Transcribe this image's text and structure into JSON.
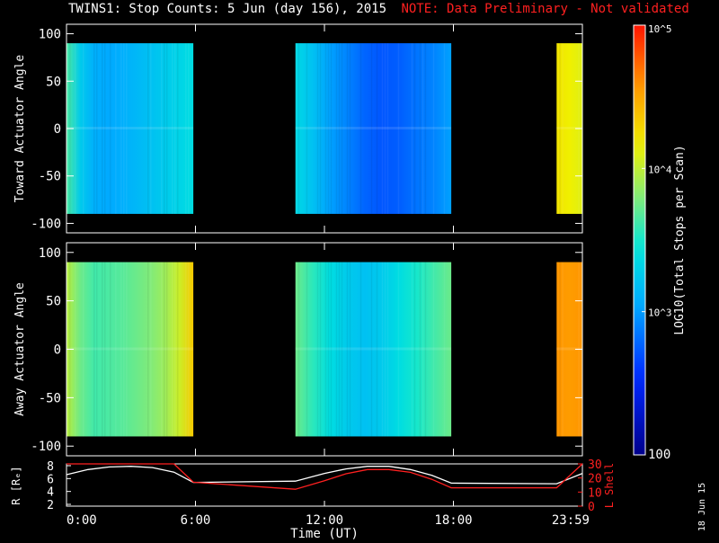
{
  "title": "TWINS1: Stop Counts:  5 Jun (day 156), 2015",
  "note": "NOTE: Data Preliminary - Not validated",
  "stamp": "18 Jun 15",
  "colors": {
    "note": "#ff2020",
    "lshell": "#ff2020",
    "radius": "#ffffff",
    "axis": "#ffffff",
    "background": "#000000"
  },
  "chart_data": [
    {
      "type": "heatmap",
      "panel": "top",
      "ylabel": "Toward Actuator Angle",
      "ylim": [
        -110,
        110
      ],
      "yticks": [
        "100",
        "50",
        "0",
        "-50",
        "-100"
      ],
      "x_range_hours": [
        0,
        24
      ],
      "data_blocks": [
        {
          "start_hour": 0.0,
          "end_hour": 5.9,
          "levels": [
            0.55,
            0.42,
            0.36,
            0.35,
            0.36,
            0.38,
            0.4,
            0.42,
            0.44,
            0.46
          ]
        },
        {
          "start_hour": 10.65,
          "end_hour": 17.9,
          "levels": [
            0.45,
            0.4,
            0.34,
            0.3,
            0.26,
            0.24,
            0.25,
            0.28,
            0.3,
            0.34
          ]
        },
        {
          "start_hour": 22.8,
          "end_hour": 24.0,
          "levels": [
            0.74,
            0.72,
            0.7
          ]
        }
      ]
    },
    {
      "type": "heatmap",
      "panel": "middle",
      "ylabel": "Away Actuator Angle",
      "ylim": [
        -110,
        110
      ],
      "yticks": [
        "100",
        "50",
        "0",
        "-50",
        "-100"
      ],
      "x_range_hours": [
        0,
        24
      ],
      "data_blocks": [
        {
          "start_hour": 0.0,
          "end_hour": 5.9,
          "levels": [
            0.66,
            0.58,
            0.54,
            0.55,
            0.56,
            0.58,
            0.6,
            0.63,
            0.68,
            0.78
          ]
        },
        {
          "start_hour": 10.65,
          "end_hour": 17.9,
          "levels": [
            0.58,
            0.52,
            0.46,
            0.42,
            0.4,
            0.42,
            0.46,
            0.5,
            0.54,
            0.58
          ]
        },
        {
          "start_hour": 22.8,
          "end_hour": 24.0,
          "levels": [
            0.86,
            0.85,
            0.86
          ]
        }
      ]
    },
    {
      "type": "line",
      "panel": "bottom",
      "xlabel": "Time (UT)",
      "xticks": [
        "0:00",
        "6:00",
        "12:00",
        "18:00",
        "23:59"
      ],
      "y_left_label": "R [Rₑ]",
      "y_left_ticks": [
        "8",
        "6",
        "4",
        "2"
      ],
      "y_left_range": [
        2,
        8
      ],
      "y_right_label": "L Shell",
      "y_right_ticks": [
        "30",
        "20",
        "10",
        "0"
      ],
      "y_right_range": [
        0,
        30
      ],
      "series": [
        {
          "name": "R [Rₑ]",
          "axis": "left",
          "x": [
            0,
            1,
            2,
            3,
            4,
            5,
            5.9,
            10.65,
            12,
            13,
            14,
            15,
            16,
            17,
            17.9,
            22.8,
            24
          ],
          "y": [
            6.6,
            7.4,
            7.8,
            7.9,
            7.7,
            7.0,
            5.4,
            5.6,
            6.8,
            7.5,
            7.9,
            7.9,
            7.4,
            6.5,
            5.3,
            5.2,
            6.8
          ]
        },
        {
          "name": "L Shell",
          "axis": "right",
          "x": [
            0,
            5.0,
            5.9,
            10.65,
            12,
            13,
            14,
            15,
            16,
            17,
            17.9,
            22.8,
            24
          ],
          "y": [
            30,
            30,
            17,
            12,
            18,
            23,
            26,
            26,
            24,
            19,
            13,
            13,
            30
          ]
        }
      ]
    },
    {
      "type": "colorbar",
      "label": "LOG10(Total Stops per Scan)",
      "tick_labels": [
        "10^5",
        "10^4",
        "10^3",
        "100"
      ],
      "range": [
        100,
        100000
      ],
      "scale": "log"
    }
  ]
}
